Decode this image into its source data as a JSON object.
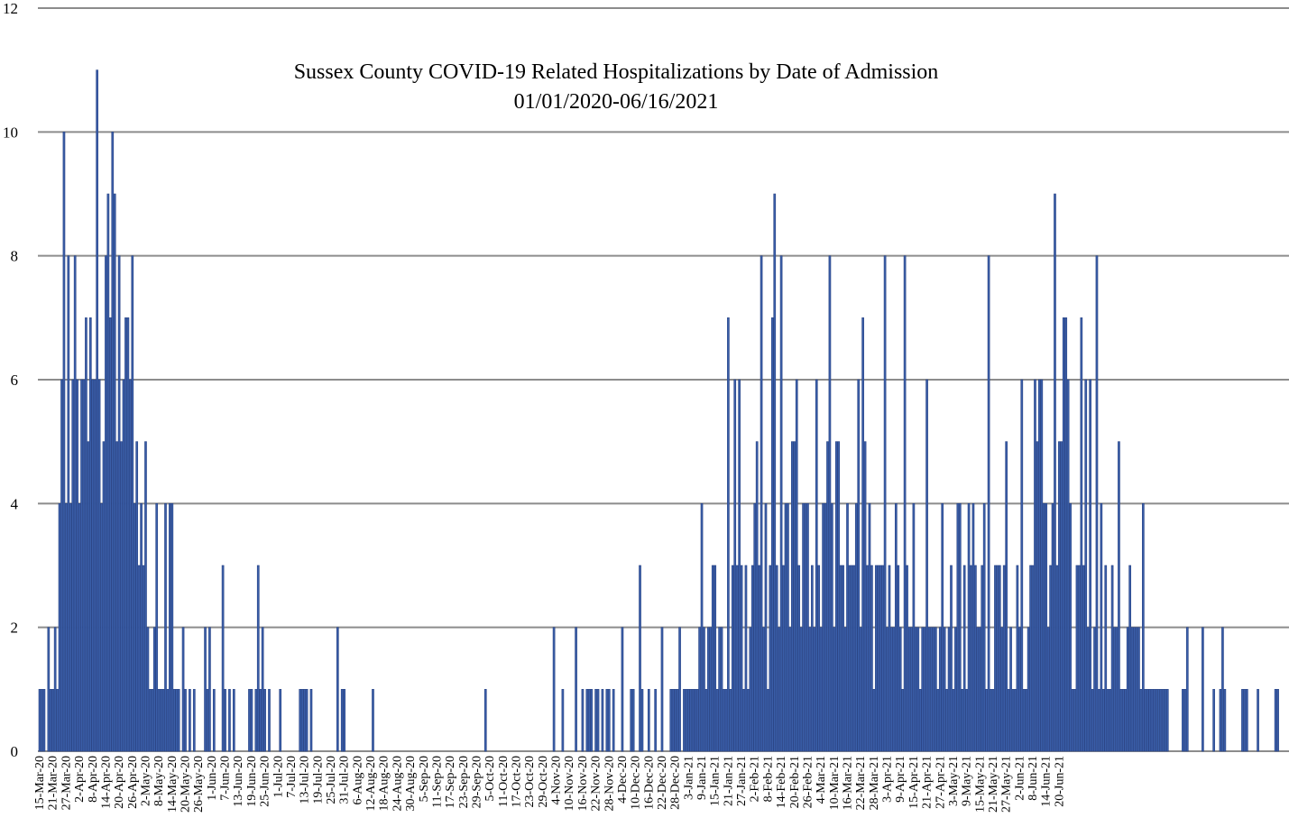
{
  "chart_data": {
    "type": "bar",
    "title": "Sussex County COVID-19 Related Hospitalizations by Date of Admission",
    "subtitle": "01/01/2020-06/16/2021",
    "xlabel": "",
    "ylabel": "",
    "ylim": [
      0,
      12
    ],
    "yticks": [
      "0",
      "2",
      "4",
      "6",
      "8",
      "10",
      "12"
    ],
    "grid": true,
    "legend": "none",
    "bar_color": "#3a5ea8",
    "bar_edge_color": "#2a4485",
    "grid_color": "#8c8c8c",
    "x_start": "2020-03-15",
    "x_tick_labels": [
      "15-Mar-20",
      "21-Mar-20",
      "27-Mar-20",
      "2-Apr-20",
      "8-Apr-20",
      "14-Apr-20",
      "20-Apr-20",
      "26-Apr-20",
      "2-May-20",
      "8-May-20",
      "14-May-20",
      "20-May-20",
      "26-May-20",
      "1-Jun-20",
      "7-Jun-20",
      "13-Jun-20",
      "19-Jun-20",
      "25-Jun-20",
      "1-Jul-20",
      "7-Jul-20",
      "13-Jul-20",
      "19-Jul-20",
      "25-Jul-20",
      "31-Jul-20",
      "6-Aug-20",
      "12-Aug-20",
      "18-Aug-20",
      "24-Aug-20",
      "30-Aug-20",
      "5-Sep-20",
      "11-Sep-20",
      "17-Sep-20",
      "23-Sep-20",
      "29-Sep-20",
      "5-Oct-20",
      "11-Oct-20",
      "17-Oct-20",
      "23-Oct-20",
      "29-Oct-20",
      "4-Nov-20",
      "10-Nov-20",
      "16-Nov-20",
      "22-Nov-20",
      "28-Nov-20",
      "4-Dec-20",
      "10-Dec-20",
      "16-Dec-20",
      "22-Dec-20",
      "28-Dec-20",
      "3-Jan-21",
      "9-Jan-21",
      "15-Jan-21",
      "21-Jan-21",
      "27-Jan-21",
      "2-Feb-21",
      "8-Feb-21",
      "14-Feb-21",
      "20-Feb-21",
      "26-Feb-21",
      "4-Mar-21",
      "10-Mar-21",
      "16-Mar-21",
      "22-Mar-21",
      "28-Mar-21",
      "3-Apr-21",
      "9-Apr-21",
      "15-Apr-21",
      "21-Apr-21",
      "27-Apr-21",
      "3-May-21",
      "9-May-21",
      "15-May-21",
      "21-May-21",
      "27-May-21",
      "2-Jun-21",
      "8-Jun-21",
      "14-Jun-21",
      "20-Jun-21"
    ],
    "values": [
      1,
      1,
      1,
      0,
      2,
      1,
      1,
      2,
      1,
      4,
      6,
      10,
      4,
      8,
      4,
      6,
      8,
      6,
      4,
      6,
      6,
      7,
      5,
      7,
      6,
      6,
      11,
      6,
      4,
      5,
      8,
      9,
      7,
      10,
      9,
      5,
      8,
      5,
      6,
      7,
      7,
      6,
      8,
      4,
      5,
      3,
      4,
      3,
      5,
      2,
      1,
      1,
      2,
      4,
      1,
      1,
      1,
      4,
      1,
      4,
      4,
      1,
      1,
      1,
      0,
      2,
      1,
      0,
      1,
      0,
      1,
      0,
      0,
      0,
      0,
      2,
      1,
      2,
      0,
      1,
      0,
      0,
      0,
      3,
      1,
      0,
      1,
      0,
      1,
      0,
      0,
      0,
      0,
      0,
      0,
      1,
      1,
      0,
      1,
      3,
      1,
      2,
      1,
      0,
      1,
      0,
      0,
      0,
      0,
      1,
      0,
      0,
      0,
      0,
      0,
      0,
      0,
      0,
      1,
      1,
      1,
      1,
      0,
      1,
      0,
      0,
      0,
      0,
      0,
      0,
      0,
      0,
      0,
      0,
      0,
      2,
      0,
      1,
      1,
      0,
      0,
      0,
      0,
      0,
      0,
      0,
      0,
      0,
      0,
      0,
      0,
      1,
      0,
      0,
      0,
      0,
      0,
      0,
      0,
      0,
      0,
      0,
      0,
      0,
      0,
      0,
      0,
      0,
      0,
      0,
      0,
      0,
      0,
      0,
      0,
      0,
      0,
      0,
      0,
      0,
      0,
      0,
      0,
      0,
      0,
      0,
      0,
      0,
      0,
      0,
      0,
      0,
      0,
      0,
      0,
      0,
      0,
      0,
      0,
      0,
      0,
      0,
      1,
      0,
      0,
      0,
      0,
      0,
      0,
      0,
      0,
      0,
      0,
      0,
      0,
      0,
      0,
      0,
      0,
      0,
      0,
      0,
      0,
      0,
      0,
      0,
      0,
      0,
      0,
      0,
      0,
      0,
      0,
      2,
      0,
      0,
      0,
      1,
      0,
      0,
      0,
      0,
      0,
      2,
      0,
      0,
      1,
      0,
      1,
      1,
      1,
      0,
      1,
      1,
      0,
      1,
      0,
      1,
      1,
      0,
      1,
      0,
      0,
      0,
      2,
      0,
      0,
      0,
      1,
      1,
      0,
      0,
      3,
      1,
      0,
      0,
      1,
      0,
      0,
      1,
      0,
      0,
      2,
      0,
      0,
      0,
      1,
      1,
      1,
      1,
      2,
      0,
      1,
      1,
      1,
      1,
      1,
      1,
      1,
      2,
      4,
      2,
      1,
      2,
      2,
      3,
      3,
      1,
      2,
      2,
      1,
      1,
      7,
      1,
      3,
      6,
      3,
      6,
      3,
      1,
      3,
      1,
      2,
      3,
      4,
      5,
      3,
      8,
      2,
      4,
      1,
      3,
      7,
      9,
      3,
      2,
      8,
      3,
      4,
      4,
      2,
      5,
      5,
      6,
      3,
      2,
      4,
      4,
      4,
      2,
      3,
      2,
      6,
      3,
      2,
      4,
      4,
      5,
      8,
      4,
      2,
      5,
      5,
      3,
      3,
      2,
      4,
      3,
      3,
      3,
      4,
      6,
      2,
      7,
      5,
      3,
      4,
      3,
      1,
      3,
      3,
      3,
      3,
      8,
      2,
      3,
      2,
      2,
      4,
      3,
      2,
      1,
      8,
      3,
      2,
      2,
      4,
      2,
      2,
      1,
      2,
      2,
      6,
      2,
      2,
      2,
      2,
      1,
      2,
      4,
      2,
      1,
      2,
      3,
      1,
      2,
      4,
      4,
      1,
      3,
      1,
      4,
      3,
      4,
      3,
      2,
      2,
      3,
      4,
      1,
      8,
      1,
      1,
      3,
      3,
      3,
      2,
      3,
      5,
      1,
      2,
      1,
      1,
      3,
      2,
      6,
      1,
      1,
      2,
      3,
      3,
      6,
      5,
      6,
      6,
      4,
      4,
      2,
      3,
      4,
      9,
      3,
      5,
      5,
      7,
      7,
      6,
      4,
      1,
      1,
      3,
      3,
      7,
      3,
      6,
      2,
      6,
      1,
      2,
      8,
      1,
      4,
      1,
      3,
      1,
      1,
      3,
      2,
      2,
      5,
      1,
      1,
      1,
      2,
      3,
      2,
      2,
      2,
      2,
      1,
      4,
      1,
      1,
      1,
      1,
      1,
      1,
      1,
      1,
      1,
      1,
      1,
      0,
      0,
      0,
      0,
      0,
      0,
      1,
      1,
      2,
      0,
      0,
      0,
      0,
      0,
      0,
      2,
      0,
      0,
      0,
      0,
      1,
      0,
      0,
      1,
      2,
      1,
      0,
      0,
      0,
      0,
      0,
      0,
      0,
      1,
      1,
      1,
      0,
      0,
      0,
      0,
      1,
      0,
      0,
      0,
      0,
      0,
      0,
      0,
      1,
      1
    ]
  }
}
